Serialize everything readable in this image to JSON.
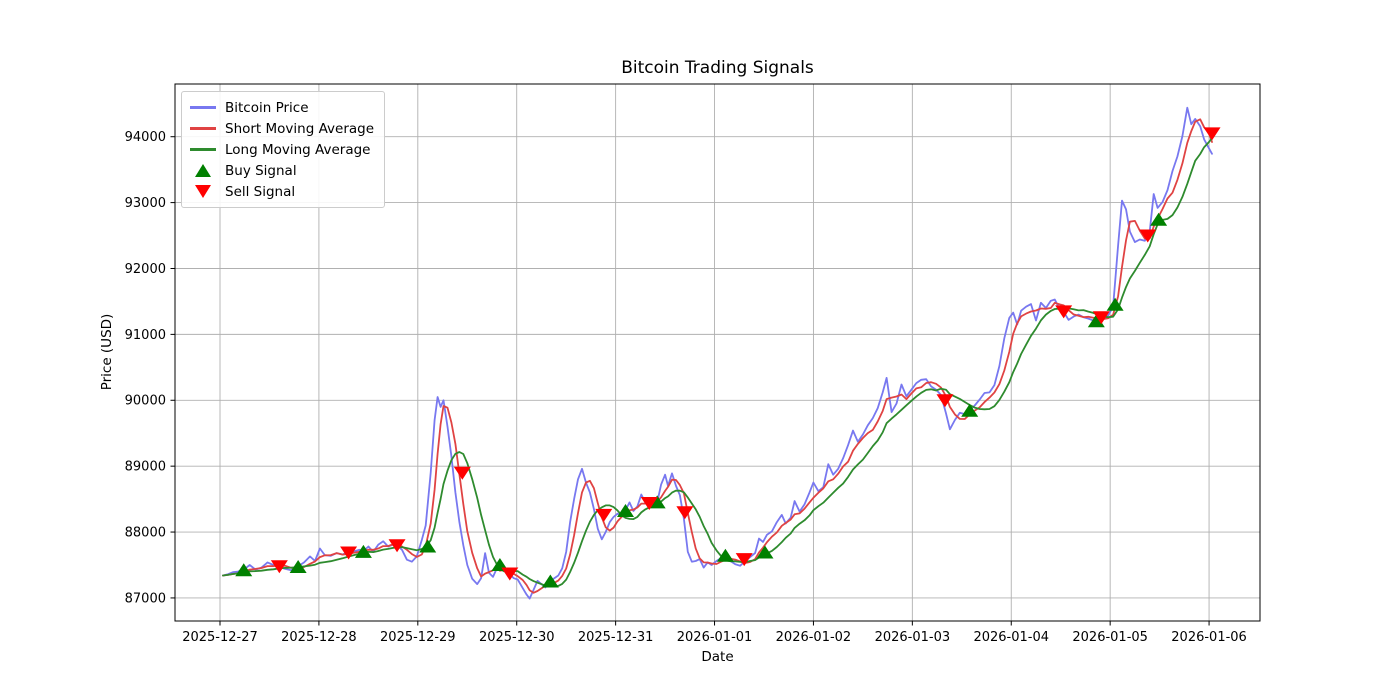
{
  "title": "Bitcoin Trading Signals",
  "axes": {
    "xlabel": "Date",
    "ylabel": "Price (USD)"
  },
  "chart_data": {
    "type": "line",
    "title": "Bitcoin Trading Signals",
    "xlabel": "Date",
    "ylabel": "Price (USD)",
    "grid": true,
    "legend_position": "upper left",
    "x_domain": [
      -0.455,
      10.515
    ],
    "y_domain": [
      86650,
      94800
    ],
    "x_ticks": [
      {
        "d": 0,
        "label": "2025-12-27"
      },
      {
        "d": 1,
        "label": "2025-12-28"
      },
      {
        "d": 2,
        "label": "2025-12-29"
      },
      {
        "d": 3,
        "label": "2025-12-30"
      },
      {
        "d": 4,
        "label": "2025-12-31"
      },
      {
        "d": 5,
        "label": "2026-01-01"
      },
      {
        "d": 6,
        "label": "2026-01-02"
      },
      {
        "d": 7,
        "label": "2026-01-03"
      },
      {
        "d": 8,
        "label": "2026-01-04"
      },
      {
        "d": 9,
        "label": "2026-01-05"
      },
      {
        "d": 10,
        "label": "2026-01-06"
      }
    ],
    "y_ticks": [
      87000,
      88000,
      89000,
      90000,
      91000,
      92000,
      93000,
      94000
    ],
    "style": {
      "grid_color": "#b0b0b0",
      "spine_color": "#000000",
      "background": "#ffffff"
    },
    "series": [
      {
        "name": "Bitcoin Price",
        "color": "#7878f0",
        "width": 1.8,
        "points": [
          [
            0.03,
            87340
          ],
          [
            0.08,
            87360
          ],
          [
            0.13,
            87390
          ],
          [
            0.18,
            87400
          ],
          [
            0.24,
            87430
          ],
          [
            0.3,
            87500
          ],
          [
            0.36,
            87430
          ],
          [
            0.42,
            87460
          ],
          [
            0.48,
            87540
          ],
          [
            0.54,
            87500
          ],
          [
            0.6,
            87470
          ],
          [
            0.66,
            87440
          ],
          [
            0.72,
            87420
          ],
          [
            0.79,
            87480
          ],
          [
            0.85,
            87540
          ],
          [
            0.91,
            87630
          ],
          [
            0.96,
            87560
          ],
          [
            1.01,
            87750
          ],
          [
            1.06,
            87650
          ],
          [
            1.12,
            87640
          ],
          [
            1.18,
            87680
          ],
          [
            1.24,
            87660
          ],
          [
            1.3,
            87700
          ],
          [
            1.36,
            87710
          ],
          [
            1.41,
            87730
          ],
          [
            1.45,
            87710
          ],
          [
            1.5,
            87780
          ],
          [
            1.55,
            87700
          ],
          [
            1.6,
            87810
          ],
          [
            1.65,
            87860
          ],
          [
            1.7,
            87780
          ],
          [
            1.75,
            87810
          ],
          [
            1.79,
            87800
          ],
          [
            1.84,
            87730
          ],
          [
            1.89,
            87580
          ],
          [
            1.94,
            87550
          ],
          [
            1.99,
            87630
          ],
          [
            2.04,
            87880
          ],
          [
            2.08,
            88100
          ],
          [
            2.13,
            88900
          ],
          [
            2.17,
            89700
          ],
          [
            2.2,
            90050
          ],
          [
            2.23,
            89900
          ],
          [
            2.26,
            90000
          ],
          [
            2.3,
            89600
          ],
          [
            2.34,
            89150
          ],
          [
            2.38,
            88600
          ],
          [
            2.42,
            88150
          ],
          [
            2.46,
            87800
          ],
          [
            2.5,
            87500
          ],
          [
            2.55,
            87290
          ],
          [
            2.6,
            87210
          ],
          [
            2.64,
            87300
          ],
          [
            2.68,
            87680
          ],
          [
            2.72,
            87380
          ],
          [
            2.76,
            87320
          ],
          [
            2.8,
            87450
          ],
          [
            2.83,
            87500
          ],
          [
            2.87,
            87420
          ],
          [
            2.9,
            87380
          ],
          [
            2.93,
            87360
          ],
          [
            2.97,
            87300
          ],
          [
            3.01,
            87280
          ],
          [
            3.06,
            87150
          ],
          [
            3.1,
            87050
          ],
          [
            3.13,
            86990
          ],
          [
            3.17,
            87120
          ],
          [
            3.21,
            87260
          ],
          [
            3.25,
            87210
          ],
          [
            3.29,
            87160
          ],
          [
            3.34,
            87250
          ],
          [
            3.38,
            87300
          ],
          [
            3.42,
            87340
          ],
          [
            3.46,
            87450
          ],
          [
            3.5,
            87700
          ],
          [
            3.54,
            88150
          ],
          [
            3.58,
            88500
          ],
          [
            3.62,
            88800
          ],
          [
            3.66,
            88960
          ],
          [
            3.7,
            88750
          ],
          [
            3.74,
            88600
          ],
          [
            3.78,
            88350
          ],
          [
            3.82,
            88050
          ],
          [
            3.86,
            87890
          ],
          [
            3.9,
            88000
          ],
          [
            3.94,
            88150
          ],
          [
            3.98,
            88230
          ],
          [
            4.02,
            88280
          ],
          [
            4.06,
            88260
          ],
          [
            4.1,
            88330
          ],
          [
            4.14,
            88450
          ],
          [
            4.18,
            88320
          ],
          [
            4.22,
            88390
          ],
          [
            4.26,
            88570
          ],
          [
            4.3,
            88450
          ],
          [
            4.34,
            88480
          ],
          [
            4.38,
            88460
          ],
          [
            4.42,
            88450
          ],
          [
            4.46,
            88720
          ],
          [
            4.5,
            88870
          ],
          [
            4.53,
            88700
          ],
          [
            4.57,
            88890
          ],
          [
            4.61,
            88700
          ],
          [
            4.65,
            88560
          ],
          [
            4.69,
            88200
          ],
          [
            4.73,
            87700
          ],
          [
            4.77,
            87550
          ],
          [
            4.81,
            87560
          ],
          [
            4.85,
            87590
          ],
          [
            4.89,
            87460
          ],
          [
            4.93,
            87540
          ],
          [
            4.97,
            87500
          ],
          [
            5.02,
            87560
          ],
          [
            5.07,
            87610
          ],
          [
            5.11,
            87650
          ],
          [
            5.16,
            87560
          ],
          [
            5.21,
            87510
          ],
          [
            5.26,
            87490
          ],
          [
            5.31,
            87560
          ],
          [
            5.36,
            87620
          ],
          [
            5.41,
            87680
          ],
          [
            5.45,
            87900
          ],
          [
            5.49,
            87850
          ],
          [
            5.53,
            87960
          ],
          [
            5.58,
            88010
          ],
          [
            5.63,
            88150
          ],
          [
            5.68,
            88260
          ],
          [
            5.72,
            88130
          ],
          [
            5.77,
            88220
          ],
          [
            5.81,
            88470
          ],
          [
            5.86,
            88310
          ],
          [
            5.91,
            88420
          ],
          [
            5.96,
            88600
          ],
          [
            6.0,
            88750
          ],
          [
            6.05,
            88620
          ],
          [
            6.1,
            88680
          ],
          [
            6.15,
            89030
          ],
          [
            6.2,
            88870
          ],
          [
            6.25,
            88960
          ],
          [
            6.3,
            89120
          ],
          [
            6.35,
            89320
          ],
          [
            6.4,
            89540
          ],
          [
            6.45,
            89370
          ],
          [
            6.5,
            89480
          ],
          [
            6.55,
            89620
          ],
          [
            6.6,
            89730
          ],
          [
            6.65,
            89880
          ],
          [
            6.7,
            90120
          ],
          [
            6.74,
            90340
          ],
          [
            6.79,
            89820
          ],
          [
            6.84,
            89950
          ],
          [
            6.89,
            90240
          ],
          [
            6.94,
            90060
          ],
          [
            6.99,
            90160
          ],
          [
            7.04,
            90260
          ],
          [
            7.09,
            90310
          ],
          [
            7.14,
            90320
          ],
          [
            7.19,
            90210
          ],
          [
            7.24,
            90160
          ],
          [
            7.29,
            90080
          ],
          [
            7.34,
            89800
          ],
          [
            7.38,
            89560
          ],
          [
            7.43,
            89700
          ],
          [
            7.48,
            89810
          ],
          [
            7.53,
            89790
          ],
          [
            7.58,
            89850
          ],
          [
            7.63,
            89920
          ],
          [
            7.68,
            90010
          ],
          [
            7.73,
            90110
          ],
          [
            7.78,
            90120
          ],
          [
            7.83,
            90230
          ],
          [
            7.88,
            90520
          ],
          [
            7.93,
            90940
          ],
          [
            7.98,
            91250
          ],
          [
            8.02,
            91330
          ],
          [
            8.06,
            91150
          ],
          [
            8.1,
            91360
          ],
          [
            8.15,
            91420
          ],
          [
            8.2,
            91460
          ],
          [
            8.25,
            91210
          ],
          [
            8.3,
            91480
          ],
          [
            8.35,
            91400
          ],
          [
            8.4,
            91510
          ],
          [
            8.44,
            91530
          ],
          [
            8.49,
            91380
          ],
          [
            8.53,
            91340
          ],
          [
            8.58,
            91220
          ],
          [
            8.63,
            91270
          ],
          [
            8.68,
            91300
          ],
          [
            8.73,
            91260
          ],
          [
            8.78,
            91240
          ],
          [
            8.83,
            91210
          ],
          [
            8.88,
            91230
          ],
          [
            8.93,
            91250
          ],
          [
            8.98,
            91290
          ],
          [
            9.03,
            91420
          ],
          [
            9.08,
            92350
          ],
          [
            9.12,
            93030
          ],
          [
            9.16,
            92900
          ],
          [
            9.2,
            92560
          ],
          [
            9.25,
            92400
          ],
          [
            9.3,
            92440
          ],
          [
            9.35,
            92420
          ],
          [
            9.4,
            92560
          ],
          [
            9.44,
            93130
          ],
          [
            9.48,
            92920
          ],
          [
            9.53,
            93010
          ],
          [
            9.58,
            93190
          ],
          [
            9.63,
            93480
          ],
          [
            9.68,
            93700
          ],
          [
            9.73,
            94010
          ],
          [
            9.78,
            94440
          ],
          [
            9.82,
            94190
          ],
          [
            9.86,
            94270
          ],
          [
            9.91,
            94160
          ],
          [
            9.95,
            93960
          ],
          [
            10.0,
            93820
          ],
          [
            10.03,
            93740
          ]
        ]
      },
      {
        "name": "Short Moving Average",
        "color": "#e04343",
        "width": 1.8,
        "derived": "rolling_mean",
        "window": 4,
        "source": "Bitcoin Price"
      },
      {
        "name": "Long Moving Average",
        "color": "#2e8b2e",
        "width": 1.8,
        "derived": "rolling_mean",
        "window": 10,
        "source": "Bitcoin Price"
      }
    ],
    "signals": [
      {
        "name": "Buy Signal",
        "marker": "triangle-up",
        "color": "#008000",
        "points": [
          [
            0.24,
            87420
          ],
          [
            0.79,
            87470
          ],
          [
            1.45,
            87700
          ],
          [
            2.1,
            87780
          ],
          [
            2.83,
            87500
          ],
          [
            3.34,
            87250
          ],
          [
            4.1,
            88320
          ],
          [
            4.42,
            88450
          ],
          [
            5.11,
            87640
          ],
          [
            5.51,
            87690
          ],
          [
            7.58,
            89840
          ],
          [
            8.86,
            91200
          ],
          [
            9.05,
            91450
          ],
          [
            9.49,
            92740
          ]
        ]
      },
      {
        "name": "Sell Signal",
        "marker": "triangle-down",
        "color": "#ff0000",
        "points": [
          [
            0.6,
            87480
          ],
          [
            1.3,
            87690
          ],
          [
            1.79,
            87800
          ],
          [
            2.45,
            88900
          ],
          [
            2.93,
            87370
          ],
          [
            3.88,
            88260
          ],
          [
            4.34,
            88440
          ],
          [
            4.7,
            88300
          ],
          [
            5.3,
            87590
          ],
          [
            7.33,
            90000
          ],
          [
            8.53,
            91350
          ],
          [
            8.91,
            91260
          ],
          [
            9.38,
            92500
          ],
          [
            10.03,
            94050
          ]
        ]
      }
    ],
    "legend": {
      "items": [
        {
          "key": "bitcoin-price",
          "label": "Bitcoin Price",
          "swatch": "line",
          "color": "#7878f0"
        },
        {
          "key": "short-moving-average",
          "label": "Short Moving Average",
          "swatch": "line",
          "color": "#e04343"
        },
        {
          "key": "long-moving-average",
          "label": "Long Moving Average",
          "swatch": "line",
          "color": "#2e8b2e"
        },
        {
          "key": "buy-signal",
          "label": "Buy Signal",
          "swatch": "triangle-up",
          "color": "#008000"
        },
        {
          "key": "sell-signal",
          "label": "Sell Signal",
          "swatch": "triangle-down",
          "color": "#ff0000"
        }
      ]
    }
  }
}
